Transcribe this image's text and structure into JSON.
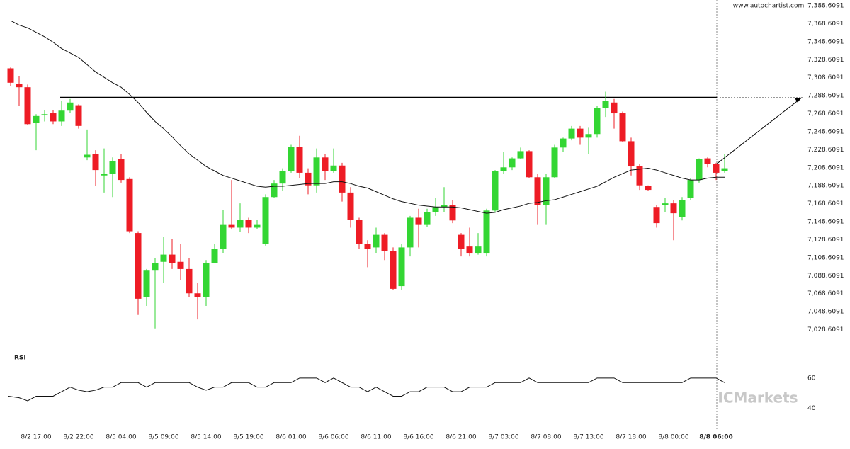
{
  "chart_data": {
    "type": "candlestick",
    "watermark": "www.autochartist.com",
    "brand": "ICMarkets",
    "categories": [
      null,
      null,
      null,
      "8/2 17:00",
      null,
      null,
      null,
      null,
      "8/2 22:00",
      null,
      null,
      null,
      null,
      "8/5 04:00",
      null,
      null,
      null,
      null,
      "8/5 09:00",
      null,
      null,
      null,
      null,
      "8/5 14:00",
      null,
      null,
      null,
      null,
      "8/5 19:00",
      null,
      null,
      null,
      null,
      "8/6 01:00",
      null,
      null,
      null,
      null,
      "8/6 06:00",
      null,
      null,
      null,
      null,
      "8/6 11:00",
      null,
      null,
      null,
      null,
      "8/6 16:00",
      null,
      null,
      null,
      null,
      "8/6 21:00",
      null,
      null,
      null,
      null,
      "8/7 03:00",
      null,
      null,
      null,
      null,
      "8/7 08:00",
      null,
      null,
      null,
      null,
      "8/7 13:00",
      null,
      null,
      null,
      null,
      "8/7 18:00",
      null,
      null,
      null,
      null,
      "8/8 00:00",
      null,
      null,
      null,
      null,
      "8/8 06:00",
      null
    ],
    "open": [
      7319,
      7302,
      7298,
      7258,
      7267,
      7269,
      7260,
      7272,
      7278,
      7220,
      7224,
      7200,
      7202,
      7218,
      7196,
      7136,
      7065,
      7095,
      7104,
      7112,
      7104,
      7096,
      7069,
      7065,
      7103,
      7118,
      7145,
      7142,
      7151,
      7142,
      7124,
      7176,
      7191,
      7205,
      7232,
      7203,
      7189,
      7220,
      7205,
      7211,
      7181,
      7151,
      7124,
      7120,
      7134,
      7116,
      7077,
      7120,
      7153,
      7145,
      7159,
      7165,
      7167,
      7134,
      7121,
      7114,
      7114,
      7161,
      7205,
      7209,
      7219,
      7227,
      7198,
      7167,
      7198,
      7231,
      7241,
      7252,
      7242,
      7246,
      7275,
      7281,
      7269,
      7238,
      7210,
      7188,
      7165,
      7167,
      7169,
      7154,
      7175,
      7195,
      7219,
      7213,
      7205
    ],
    "high": [
      7320,
      7310,
      7301,
      7268,
      7273,
      7273,
      7283,
      7285,
      7279,
      7251,
      7228,
      7230,
      7220,
      7224,
      7198,
      7138,
      7096,
      7108,
      7132,
      7129,
      7124,
      7108,
      7081,
      7106,
      7124,
      7162,
      7195,
      7169,
      7153,
      7151,
      7179,
      7195,
      7208,
      7234,
      7244,
      7208,
      7230,
      7224,
      7230,
      7214,
      7187,
      7153,
      7128,
      7142,
      7136,
      7120,
      7124,
      7155,
      7163,
      7163,
      7175,
      7187,
      7173,
      7136,
      7142,
      7136,
      7163,
      7206,
      7226,
      7220,
      7231,
      7228,
      7202,
      7202,
      7234,
      7242,
      7255,
      7255,
      7253,
      7277,
      7293,
      7285,
      7271,
      7242,
      7213,
      7189,
      7167,
      7175,
      7173,
      7176,
      7197,
      7219,
      7220,
      7214,
      7224
    ],
    "low": [
      7299,
      7277,
      7256,
      7228,
      7260,
      7257,
      7255,
      7269,
      7252,
      7217,
      7188,
      7181,
      7176,
      7192,
      7136,
      7045,
      7055,
      7030,
      7081,
      7096,
      7084,
      7065,
      7040,
      7055,
      7103,
      7114,
      7140,
      7137,
      7136,
      7140,
      7122,
      7175,
      7183,
      7203,
      7197,
      7179,
      7181,
      7195,
      7203,
      7171,
      7142,
      7118,
      7098,
      7114,
      7106,
      7073,
      7073,
      7110,
      7120,
      7143,
      7155,
      7159,
      7147,
      7110,
      7110,
      7112,
      7110,
      7159,
      7202,
      7206,
      7218,
      7197,
      7145,
      7145,
      7197,
      7226,
      7239,
      7234,
      7224,
      7242,
      7265,
      7252,
      7237,
      7200,
      7184,
      7183,
      7142,
      7159,
      7128,
      7150,
      7173,
      7192,
      7209,
      7195,
      7203
    ],
    "close": [
      7303,
      7298,
      7257,
      7266,
      7268,
      7260,
      7272,
      7281,
      7255,
      7223,
      7206,
      7202,
      7216,
      7195,
      7138,
      7063,
      7095,
      7103,
      7112,
      7103,
      7096,
      7069,
      7065,
      7103,
      7118,
      7145,
      7142,
      7151,
      7142,
      7145,
      7176,
      7191,
      7205,
      7232,
      7203,
      7189,
      7220,
      7205,
      7211,
      7181,
      7151,
      7124,
      7118,
      7134,
      7116,
      7074,
      7120,
      7153,
      7145,
      7159,
      7165,
      7167,
      7150,
      7118,
      7114,
      7121,
      7161,
      7205,
      7209,
      7219,
      7227,
      7198,
      7167,
      7198,
      7231,
      7241,
      7252,
      7242,
      7246,
      7275,
      7283,
      7269,
      7238,
      7210,
      7189,
      7184,
      7147,
      7169,
      7158,
      7173,
      7195,
      7218,
      7213,
      7203,
      7208
    ],
    "up_color": "#33d633",
    "down_color": "#ee1c25",
    "moving_average": {
      "color": "#111111",
      "values": [
        7372,
        7367,
        7364,
        7359,
        7354,
        7348,
        7341,
        7336,
        7331,
        7323,
        7315,
        7309,
        7303,
        7298,
        7290,
        7281,
        7270,
        7260,
        7252,
        7243,
        7233,
        7224,
        7217,
        7210,
        7205,
        7200,
        7197,
        7194,
        7191,
        7188,
        7187,
        7188,
        7188,
        7189,
        7190,
        7191,
        7191,
        7191,
        7193,
        7193,
        7191,
        7188,
        7186,
        7182,
        7178,
        7174,
        7171,
        7169,
        7167,
        7166,
        7165,
        7165,
        7165,
        7164,
        7162,
        7160,
        7158,
        7159,
        7162,
        7164,
        7166,
        7169,
        7170,
        7172,
        7173,
        7176,
        7179,
        7182,
        7185,
        7188,
        7193,
        7198,
        7202,
        7206,
        7207,
        7208,
        7206,
        7203,
        7200,
        7197,
        7195,
        7195,
        7197,
        7198,
        7198
      ]
    },
    "resistance": 7286.5,
    "ylim": [
      7008.6091,
      7388.6091
    ],
    "yticks": [
      {
        "value": 7388.6091,
        "label": "7,388.6091"
      },
      {
        "value": 7368.6091,
        "label": "7,368.6091"
      },
      {
        "value": 7348.6091,
        "label": "7,348.6091"
      },
      {
        "value": 7328.6091,
        "label": "7,328.6091"
      },
      {
        "value": 7308.6091,
        "label": "7,308.6091"
      },
      {
        "value": 7288.6091,
        "label": "7,288.6091"
      },
      {
        "value": 7268.6091,
        "label": "7,268.6091"
      },
      {
        "value": 7248.6091,
        "label": "7,248.6091"
      },
      {
        "value": 7228.6091,
        "label": "7,228.6091"
      },
      {
        "value": 7208.6091,
        "label": "7,208.6091"
      },
      {
        "value": 7188.6091,
        "label": "7,188.6091"
      },
      {
        "value": 7168.6091,
        "label": "7,168.6091"
      },
      {
        "value": 7148.6091,
        "label": "7,148.6091"
      },
      {
        "value": 7128.6091,
        "label": "7,128.6091"
      },
      {
        "value": 7108.6091,
        "label": "7,108.6091"
      },
      {
        "value": 7088.6091,
        "label": "7,088.6091"
      },
      {
        "value": 7068.6091,
        "label": "7,068.6091"
      },
      {
        "value": 7048.6091,
        "label": "7,048.6091"
      },
      {
        "value": 7028.6091,
        "label": "7,028.6091"
      }
    ],
    "rsi": {
      "name": "RSI",
      "color": "#111111",
      "ylim": [
        30,
        66
      ],
      "yticks": [
        60,
        40
      ],
      "values": [
        48,
        47,
        45,
        48,
        48,
        48,
        51,
        54,
        52,
        51,
        52,
        54,
        54,
        57,
        57,
        57,
        54,
        57,
        57,
        57,
        57,
        57,
        54,
        52,
        54,
        54,
        57,
        57,
        57,
        54,
        54,
        57,
        57,
        57,
        60,
        60,
        60,
        57,
        60,
        57,
        54,
        54,
        51,
        54,
        51,
        48,
        48,
        51,
        51,
        54,
        54,
        54,
        51,
        51,
        54,
        54,
        54,
        57,
        57,
        57,
        57,
        60,
        57,
        57,
        57,
        57,
        57,
        57,
        57,
        60,
        60,
        60,
        57,
        57,
        57,
        57,
        57,
        57,
        57,
        57,
        60,
        60,
        60,
        60,
        57
      ]
    }
  }
}
